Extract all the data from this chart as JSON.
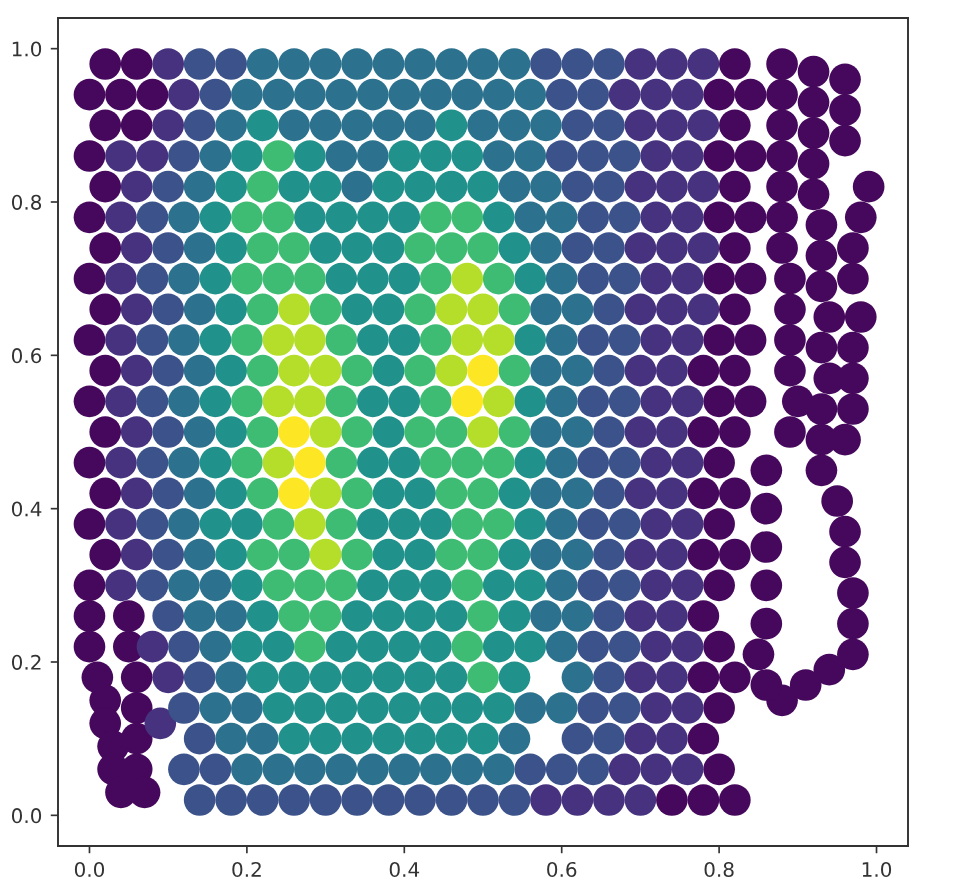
{
  "chart_data": {
    "type": "scatter",
    "marker": "circle",
    "xlim": [
      -0.04,
      1.04
    ],
    "ylim": [
      -0.04,
      1.04
    ],
    "xticks": [
      {
        "value": 0,
        "label": "0.0"
      },
      0.2,
      0.4,
      0.6,
      0.8,
      {
        "value": 1,
        "label": "1.0"
      }
    ],
    "yticks": [
      {
        "value": 0,
        "label": "0.0"
      },
      0.2,
      0.4,
      0.6,
      0.8,
      {
        "value": 1,
        "label": "1.0"
      }
    ],
    "series": [
      {
        "color": "#46085c",
        "x": [
          0.02,
          0.06,
          0.82,
          0,
          0.04,
          0.08,
          0.8,
          0.84,
          0.02,
          0.06,
          0.82,
          0,
          0.8,
          0.84,
          0.02,
          0.82,
          0,
          0.8,
          0.84,
          0.02,
          0.82,
          0,
          0.8,
          0.84,
          0.02,
          0.82,
          0,
          0.8,
          0.84,
          0.02,
          0.78,
          0.82,
          0,
          0.8,
          0.84,
          0.02,
          0.78,
          0.82,
          0,
          0.8,
          0.02,
          0.78,
          0.82,
          0,
          0.8,
          0.02,
          0.78,
          0.82,
          0,
          0.8,
          0.78,
          0.8,
          0.78,
          0.82,
          0.8,
          0.78,
          0.8,
          0.74,
          0.78,
          0.82,
          0.88,
          0.88,
          0.88,
          0.88,
          0.88,
          0.88,
          0.88,
          0.89,
          0.89,
          0.89,
          0.89,
          0.9,
          0.89,
          0.92,
          0.92,
          0.92,
          0.92,
          0.92,
          0.93,
          0.93,
          0.93,
          0.94,
          0.93,
          0.94,
          0.93,
          0.93,
          0.93,
          0.96,
          0.96,
          0.96,
          0.99,
          0.98,
          0.97,
          0.97,
          0.98,
          0.97,
          0.97,
          0.97,
          0.96,
          0.95,
          0.96,
          0.96,
          0.97,
          0.97,
          0.97,
          0.94,
          0.91,
          0.88,
          0.86,
          0.85,
          0.86,
          0.86,
          0.86,
          0.86,
          0.86,
          0,
          0,
          0.01,
          0.02,
          0.02,
          0.03,
          0.03,
          0.04,
          0.05,
          0.05,
          0.06,
          0.06,
          0.06,
          0.06,
          0.07
        ],
        "values": [
          0.98,
          0.98,
          0.98,
          0.94,
          0.94,
          0.94,
          0.94,
          0.94,
          0.9,
          0.9,
          0.9,
          0.86,
          0.86,
          0.86,
          0.82,
          0.82,
          0.78,
          0.78,
          0.78,
          0.74,
          0.74,
          0.7,
          0.7,
          0.7,
          0.66,
          0.66,
          0.62,
          0.62,
          0.62,
          0.58,
          0.58,
          0.58,
          0.54,
          0.54,
          0.54,
          0.5,
          0.5,
          0.5,
          0.46,
          0.46,
          0.42,
          0.42,
          0.42,
          0.38,
          0.38,
          0.34,
          0.34,
          0.34,
          0.3,
          0.3,
          0.26,
          0.22,
          0.18,
          0.18,
          0.14,
          0.1,
          0.06,
          0.02,
          0.02,
          0.02,
          0.98,
          0.94,
          0.9,
          0.86,
          0.82,
          0.78,
          0.74,
          0.7,
          0.66,
          0.62,
          0.58,
          0.54,
          0.5,
          0.97,
          0.93,
          0.89,
          0.85,
          0.81,
          0.77,
          0.73,
          0.69,
          0.65,
          0.61,
          0.57,
          0.53,
          0.49,
          0.45,
          0.96,
          0.92,
          0.88,
          0.82,
          0.78,
          0.74,
          0.7,
          0.65,
          0.61,
          0.57,
          0.53,
          0.49,
          0.41,
          0.37,
          0.33,
          0.29,
          0.25,
          0.21,
          0.19,
          0.17,
          0.15,
          0.17,
          0.21,
          0.25,
          0.3,
          0.35,
          0.4,
          0.45,
          0.26,
          0.22,
          0.18,
          0.15,
          0.12,
          0.09,
          0.06,
          0.03,
          0.26,
          0.22,
          0.18,
          0.14,
          0.1,
          0.06,
          0.03
        ]
      },
      {
        "color": "#46327e",
        "x": [
          0.1,
          0.7,
          0.74,
          0.78,
          0.12,
          0.68,
          0.72,
          0.76,
          0.1,
          0.7,
          0.74,
          0.78,
          0.04,
          0.08,
          0.72,
          0.76,
          0.06,
          0.7,
          0.74,
          0.78,
          0.04,
          0.72,
          0.76,
          0.06,
          0.7,
          0.74,
          0.78,
          0.04,
          0.72,
          0.76,
          0.06,
          0.7,
          0.74,
          0.78,
          0.04,
          0.72,
          0.76,
          0.06,
          0.7,
          0.74,
          0.04,
          0.72,
          0.76,
          0.06,
          0.7,
          0.74,
          0.04,
          0.72,
          0.76,
          0.06,
          0.7,
          0.74,
          0.04,
          0.72,
          0.76,
          0.06,
          0.7,
          0.74,
          0.04,
          0.72,
          0.76,
          0.7,
          0.74,
          0.08,
          0.72,
          0.76,
          0.1,
          0.7,
          0.74,
          0.72,
          0.76,
          0.7,
          0.74,
          0.68,
          0.72,
          0.76,
          0.58,
          0.62,
          0.66,
          0.7,
          0.09
        ],
        "values": [
          0.98,
          0.98,
          0.98,
          0.98,
          0.94,
          0.94,
          0.94,
          0.94,
          0.9,
          0.9,
          0.9,
          0.9,
          0.86,
          0.86,
          0.86,
          0.86,
          0.82,
          0.82,
          0.82,
          0.82,
          0.78,
          0.78,
          0.78,
          0.74,
          0.74,
          0.74,
          0.74,
          0.7,
          0.7,
          0.7,
          0.66,
          0.66,
          0.66,
          0.66,
          0.62,
          0.62,
          0.62,
          0.58,
          0.58,
          0.58,
          0.54,
          0.54,
          0.54,
          0.5,
          0.5,
          0.5,
          0.46,
          0.46,
          0.46,
          0.42,
          0.42,
          0.42,
          0.38,
          0.38,
          0.38,
          0.34,
          0.34,
          0.34,
          0.3,
          0.3,
          0.3,
          0.26,
          0.26,
          0.22,
          0.22,
          0.22,
          0.18,
          0.18,
          0.18,
          0.14,
          0.14,
          0.1,
          0.1,
          0.06,
          0.06,
          0.06,
          0.02,
          0.02,
          0.02,
          0.02,
          0.12
        ]
      },
      {
        "color": "#3b528b",
        "x": [
          0.14,
          0.18,
          0.58,
          0.62,
          0.66,
          0.16,
          0.6,
          0.64,
          0.14,
          0.62,
          0.66,
          0.12,
          0.6,
          0.64,
          0.68,
          0.1,
          0.62,
          0.66,
          0.08,
          0.64,
          0.68,
          0.1,
          0.62,
          0.66,
          0.08,
          0.64,
          0.68,
          0.1,
          0.66,
          0.08,
          0.64,
          0.68,
          0.1,
          0.66,
          0.08,
          0.64,
          0.68,
          0.1,
          0.66,
          0.08,
          0.64,
          0.68,
          0.1,
          0.66,
          0.08,
          0.64,
          0.68,
          0.1,
          0.66,
          0.08,
          0.64,
          0.68,
          0.1,
          0.66,
          0.12,
          0.64,
          0.68,
          0.14,
          0.66,
          0.12,
          0.64,
          0.68,
          0.14,
          0.62,
          0.66,
          0.12,
          0.16,
          0.56,
          0.6,
          0.64,
          0.14,
          0.18,
          0.22,
          0.26,
          0.3,
          0.34,
          0.38,
          0.42,
          0.46,
          0.5,
          0.54
        ],
        "values": [
          0.98,
          0.98,
          0.98,
          0.98,
          0.98,
          0.94,
          0.94,
          0.94,
          0.9,
          0.9,
          0.9,
          0.86,
          0.86,
          0.86,
          0.86,
          0.82,
          0.82,
          0.82,
          0.78,
          0.78,
          0.78,
          0.74,
          0.74,
          0.74,
          0.7,
          0.7,
          0.7,
          0.66,
          0.66,
          0.62,
          0.62,
          0.62,
          0.58,
          0.58,
          0.54,
          0.54,
          0.54,
          0.5,
          0.5,
          0.46,
          0.46,
          0.46,
          0.42,
          0.42,
          0.38,
          0.38,
          0.38,
          0.34,
          0.34,
          0.3,
          0.3,
          0.3,
          0.26,
          0.26,
          0.22,
          0.22,
          0.22,
          0.18,
          0.18,
          0.14,
          0.14,
          0.14,
          0.1,
          0.1,
          0.1,
          0.06,
          0.06,
          0.06,
          0.06,
          0.06,
          0.02,
          0.02,
          0.02,
          0.02,
          0.02,
          0.02,
          0.02,
          0.02,
          0.02,
          0.02,
          0.02
        ]
      },
      {
        "color": "#2c728e",
        "x": [
          0.22,
          0.26,
          0.3,
          0.34,
          0.38,
          0.42,
          0.46,
          0.5,
          0.54,
          0.2,
          0.24,
          0.28,
          0.32,
          0.36,
          0.4,
          0.44,
          0.48,
          0.52,
          0.56,
          0.18,
          0.26,
          0.3,
          0.34,
          0.38,
          0.42,
          0.5,
          0.54,
          0.58,
          0.16,
          0.32,
          0.36,
          0.52,
          0.56,
          0.14,
          0.34,
          0.54,
          0.58,
          0.12,
          0.56,
          0.6,
          0.14,
          0.58,
          0.12,
          0.6,
          0.14,
          0.58,
          0.62,
          0.12,
          0.6,
          0.14,
          0.58,
          0.62,
          0.12,
          0.6,
          0.14,
          0.58,
          0.62,
          0.12,
          0.6,
          0.14,
          0.58,
          0.62,
          0.12,
          0.6,
          0.14,
          0.58,
          0.62,
          0.12,
          0.16,
          0.6,
          0.14,
          0.18,
          0.58,
          0.62,
          0.16,
          0.6,
          0.18,
          0.62,
          0.16,
          0.2,
          0.56,
          0.6,
          0.18,
          0.22,
          0.54,
          0.2,
          0.24,
          0.28,
          0.32,
          0.36,
          0.4,
          0.44,
          0.48,
          0.52
        ],
        "values": [
          0.98,
          0.98,
          0.98,
          0.98,
          0.98,
          0.98,
          0.98,
          0.98,
          0.98,
          0.94,
          0.94,
          0.94,
          0.94,
          0.94,
          0.94,
          0.94,
          0.94,
          0.94,
          0.94,
          0.9,
          0.9,
          0.9,
          0.9,
          0.9,
          0.9,
          0.9,
          0.9,
          0.9,
          0.86,
          0.86,
          0.86,
          0.86,
          0.86,
          0.82,
          0.82,
          0.82,
          0.82,
          0.78,
          0.78,
          0.78,
          0.74,
          0.74,
          0.7,
          0.7,
          0.66,
          0.66,
          0.66,
          0.62,
          0.62,
          0.58,
          0.58,
          0.58,
          0.54,
          0.54,
          0.5,
          0.5,
          0.5,
          0.46,
          0.46,
          0.42,
          0.42,
          0.42,
          0.38,
          0.38,
          0.34,
          0.34,
          0.34,
          0.3,
          0.3,
          0.3,
          0.26,
          0.26,
          0.26,
          0.26,
          0.22,
          0.22,
          0.18,
          0.18,
          0.14,
          0.14,
          0.14,
          0.14,
          0.1,
          0.1,
          0.1,
          0.06,
          0.06,
          0.06,
          0.06,
          0.06,
          0.06,
          0.06,
          0.06,
          0.06
        ]
      },
      {
        "color": "#21918c",
        "x": [
          0.22,
          0.46,
          0.2,
          0.28,
          0.4,
          0.44,
          0.48,
          0.18,
          0.26,
          0.3,
          0.38,
          0.42,
          0.46,
          0.5,
          0.16,
          0.28,
          0.32,
          0.36,
          0.4,
          0.52,
          0.18,
          0.3,
          0.34,
          0.38,
          0.54,
          0.16,
          0.32,
          0.36,
          0.4,
          0.56,
          0.18,
          0.34,
          0.38,
          0.16,
          0.36,
          0.4,
          0.56,
          0.18,
          0.38,
          0.16,
          0.36,
          0.4,
          0.56,
          0.18,
          0.38,
          0.16,
          0.36,
          0.4,
          0.56,
          0.18,
          0.38,
          0.42,
          0.54,
          0.16,
          0.2,
          0.36,
          0.4,
          0.44,
          0.56,
          0.18,
          0.38,
          0.42,
          0.54,
          0.2,
          0.36,
          0.4,
          0.44,
          0.52,
          0.56,
          0.22,
          0.34,
          0.38,
          0.42,
          0.46,
          0.54,
          0.2,
          0.24,
          0.32,
          0.36,
          0.4,
          0.44,
          0.52,
          0.56,
          0.22,
          0.26,
          0.3,
          0.34,
          0.38,
          0.42,
          0.46,
          0.54,
          0.24,
          0.28,
          0.32,
          0.36,
          0.4,
          0.44,
          0.48,
          0.52,
          0.26,
          0.3,
          0.34,
          0.38,
          0.42,
          0.46,
          0.5
        ],
        "values": [
          0.9,
          0.9,
          0.86,
          0.86,
          0.86,
          0.86,
          0.86,
          0.82,
          0.82,
          0.82,
          0.82,
          0.82,
          0.82,
          0.82,
          0.78,
          0.78,
          0.78,
          0.78,
          0.78,
          0.78,
          0.74,
          0.74,
          0.74,
          0.74,
          0.74,
          0.7,
          0.7,
          0.7,
          0.7,
          0.7,
          0.66,
          0.66,
          0.66,
          0.62,
          0.62,
          0.62,
          0.62,
          0.58,
          0.58,
          0.54,
          0.54,
          0.54,
          0.54,
          0.5,
          0.5,
          0.46,
          0.46,
          0.46,
          0.46,
          0.42,
          0.42,
          0.42,
          0.42,
          0.38,
          0.38,
          0.38,
          0.38,
          0.38,
          0.38,
          0.34,
          0.34,
          0.34,
          0.34,
          0.3,
          0.3,
          0.3,
          0.3,
          0.3,
          0.3,
          0.26,
          0.26,
          0.26,
          0.26,
          0.26,
          0.26,
          0.22,
          0.22,
          0.22,
          0.22,
          0.22,
          0.22,
          0.22,
          0.22,
          0.18,
          0.18,
          0.18,
          0.18,
          0.18,
          0.18,
          0.18,
          0.18,
          0.14,
          0.14,
          0.14,
          0.14,
          0.14,
          0.14,
          0.14,
          0.14,
          0.1,
          0.1,
          0.1,
          0.1,
          0.1,
          0.1,
          0.1
        ]
      },
      {
        "color": "#3fbc73",
        "x": [
          0.24,
          0.22,
          0.2,
          0.24,
          0.44,
          0.48,
          0.22,
          0.26,
          0.42,
          0.46,
          0.5,
          0.2,
          0.24,
          0.28,
          0.44,
          0.52,
          0.22,
          0.3,
          0.42,
          0.54,
          0.2,
          0.32,
          0.44,
          0.22,
          0.34,
          0.42,
          0.54,
          0.2,
          0.32,
          0.44,
          0.22,
          0.34,
          0.42,
          0.46,
          0.54,
          0.2,
          0.32,
          0.44,
          0.48,
          0.52,
          0.22,
          0.34,
          0.46,
          0.5,
          0.24,
          0.32,
          0.48,
          0.52,
          0.22,
          0.26,
          0.34,
          0.46,
          0.5,
          0.24,
          0.28,
          0.32,
          0.48,
          0.26,
          0.3,
          0.5,
          0.28,
          0.48,
          0.5
        ],
        "values": [
          0.86,
          0.82,
          0.78,
          0.78,
          0.78,
          0.78,
          0.74,
          0.74,
          0.74,
          0.74,
          0.74,
          0.7,
          0.7,
          0.7,
          0.7,
          0.7,
          0.66,
          0.66,
          0.66,
          0.66,
          0.62,
          0.62,
          0.62,
          0.58,
          0.58,
          0.58,
          0.58,
          0.54,
          0.54,
          0.54,
          0.5,
          0.5,
          0.5,
          0.5,
          0.5,
          0.46,
          0.46,
          0.46,
          0.46,
          0.46,
          0.42,
          0.42,
          0.42,
          0.42,
          0.38,
          0.38,
          0.38,
          0.38,
          0.34,
          0.34,
          0.34,
          0.34,
          0.34,
          0.3,
          0.3,
          0.3,
          0.3,
          0.26,
          0.26,
          0.26,
          0.22,
          0.22,
          0.18
        ]
      },
      {
        "color": "#b5de2b",
        "x": [
          0.48,
          0.26,
          0.46,
          0.5,
          0.24,
          0.28,
          0.48,
          0.52,
          0.26,
          0.3,
          0.46,
          0.24,
          0.28,
          0.52,
          0.3,
          0.5,
          0.24,
          0.3,
          0.28,
          0.3
        ],
        "values": [
          0.7,
          0.66,
          0.66,
          0.66,
          0.62,
          0.62,
          0.62,
          0.62,
          0.58,
          0.58,
          0.58,
          0.54,
          0.54,
          0.54,
          0.5,
          0.5,
          0.46,
          0.42,
          0.38,
          0.34
        ]
      },
      {
        "color": "#fde725",
        "x": [
          0.5,
          0.48,
          0.26,
          0.28,
          0.26
        ],
        "values": [
          0.58,
          0.54,
          0.5,
          0.46,
          0.42
        ]
      }
    ]
  }
}
